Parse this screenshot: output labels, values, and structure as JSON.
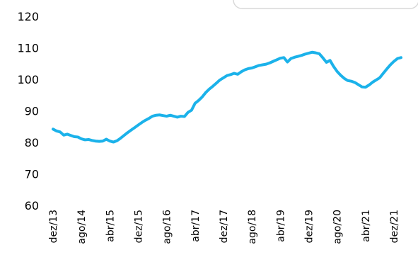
{
  "chart_data": {
    "type": "line",
    "title": "",
    "xlabel": "",
    "ylabel": "",
    "ylim": [
      60,
      120
    ],
    "yticks": [
      60,
      70,
      80,
      90,
      100,
      110,
      120
    ],
    "grid": false,
    "legend": "top-right (empty box, partially visible)",
    "x_tick_labels": [
      "dez/13",
      "ago/14",
      "abr/15",
      "dez/15",
      "ago/16",
      "abr/17",
      "dez/17",
      "ago/18",
      "abr/19",
      "dez/19",
      "ago/20",
      "abr/21",
      "dez/21"
    ],
    "series": [
      {
        "color": "#1BB2EA",
        "values": [
          84.2,
          83.6,
          83.3,
          82.3,
          82.6,
          82.2,
          81.8,
          81.7,
          81.1,
          80.8,
          80.9,
          80.6,
          80.4,
          80.3,
          80.4,
          81.0,
          80.4,
          80.1,
          80.5,
          81.3,
          82.2,
          83.1,
          83.9,
          84.7,
          85.5,
          86.3,
          87.0,
          87.6,
          88.3,
          88.6,
          88.7,
          88.5,
          88.3,
          88.6,
          88.3,
          88.0,
          88.3,
          88.2,
          89.5,
          90.2,
          92.4,
          93.3,
          94.4,
          95.8,
          96.9,
          97.8,
          98.8,
          99.8,
          100.5,
          101.2,
          101.5,
          101.9,
          101.6,
          102.4,
          103.0,
          103.4,
          103.6,
          104.0,
          104.4,
          104.6,
          104.8,
          105.2,
          105.7,
          106.2,
          106.7,
          106.9,
          105.5,
          106.6,
          107.0,
          107.3,
          107.6,
          108.0,
          108.3,
          108.6,
          108.4,
          108.1,
          106.8,
          105.4,
          106.0,
          104.1,
          102.5,
          101.3,
          100.3,
          99.6,
          99.4,
          99.0,
          98.3,
          97.6,
          97.5,
          98.2,
          99.1,
          99.8,
          100.5,
          101.9,
          103.3,
          104.6,
          105.7,
          106.6,
          106.9
        ]
      }
    ]
  }
}
